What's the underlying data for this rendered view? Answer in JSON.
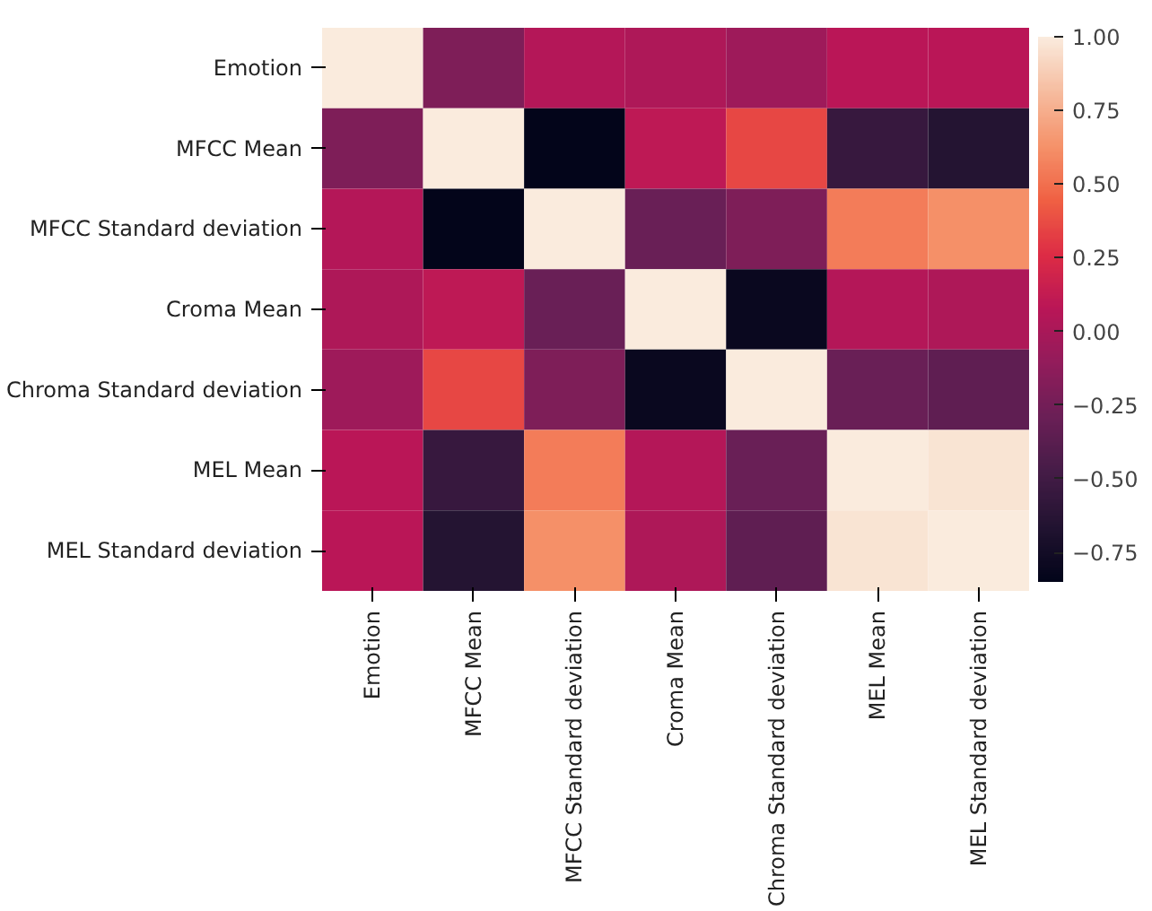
{
  "chart_data": {
    "type": "heatmap",
    "categories": [
      "Emotion",
      "MFCC Mean",
      "MFCC Standard deviation",
      "Croma Mean",
      "Chroma Standard deviation",
      "MEL Mean",
      "MEL Standard deviation"
    ],
    "y_categories": [
      "Emotion",
      "MFCC Mean",
      "MFCC Standard deviation",
      "Croma Mean",
      "Chroma Standard deviation",
      "MEL Mean",
      "MEL Standard deviation"
    ],
    "cells": [
      [
        1.0,
        -0.2,
        0.05,
        0.02,
        -0.05,
        0.08,
        0.08
      ],
      [
        -0.2,
        1.0,
        -0.85,
        0.1,
        0.35,
        -0.55,
        -0.65
      ],
      [
        0.05,
        -0.85,
        1.0,
        -0.3,
        -0.2,
        0.55,
        0.62
      ],
      [
        0.02,
        0.1,
        -0.3,
        1.0,
        -0.8,
        0.05,
        0.02
      ],
      [
        -0.05,
        0.35,
        -0.2,
        -0.8,
        1.0,
        -0.3,
        -0.35
      ],
      [
        0.08,
        -0.55,
        0.55,
        0.05,
        -0.3,
        1.0,
        0.97
      ],
      [
        0.08,
        -0.65,
        0.62,
        0.02,
        -0.35,
        0.97,
        1.0
      ]
    ],
    "clim": [
      -0.85,
      1.0
    ],
    "cticks": [
      {
        "value": 1.0,
        "label": "1.00"
      },
      {
        "value": 0.75,
        "label": "0.75"
      },
      {
        "value": 0.5,
        "label": "0.50"
      },
      {
        "value": 0.25,
        "label": "0.25"
      },
      {
        "value": 0.0,
        "label": "0.00"
      },
      {
        "value": -0.25,
        "label": "−0.25"
      },
      {
        "value": -0.5,
        "label": "−0.50"
      },
      {
        "value": -0.75,
        "label": "−0.75"
      }
    ]
  }
}
